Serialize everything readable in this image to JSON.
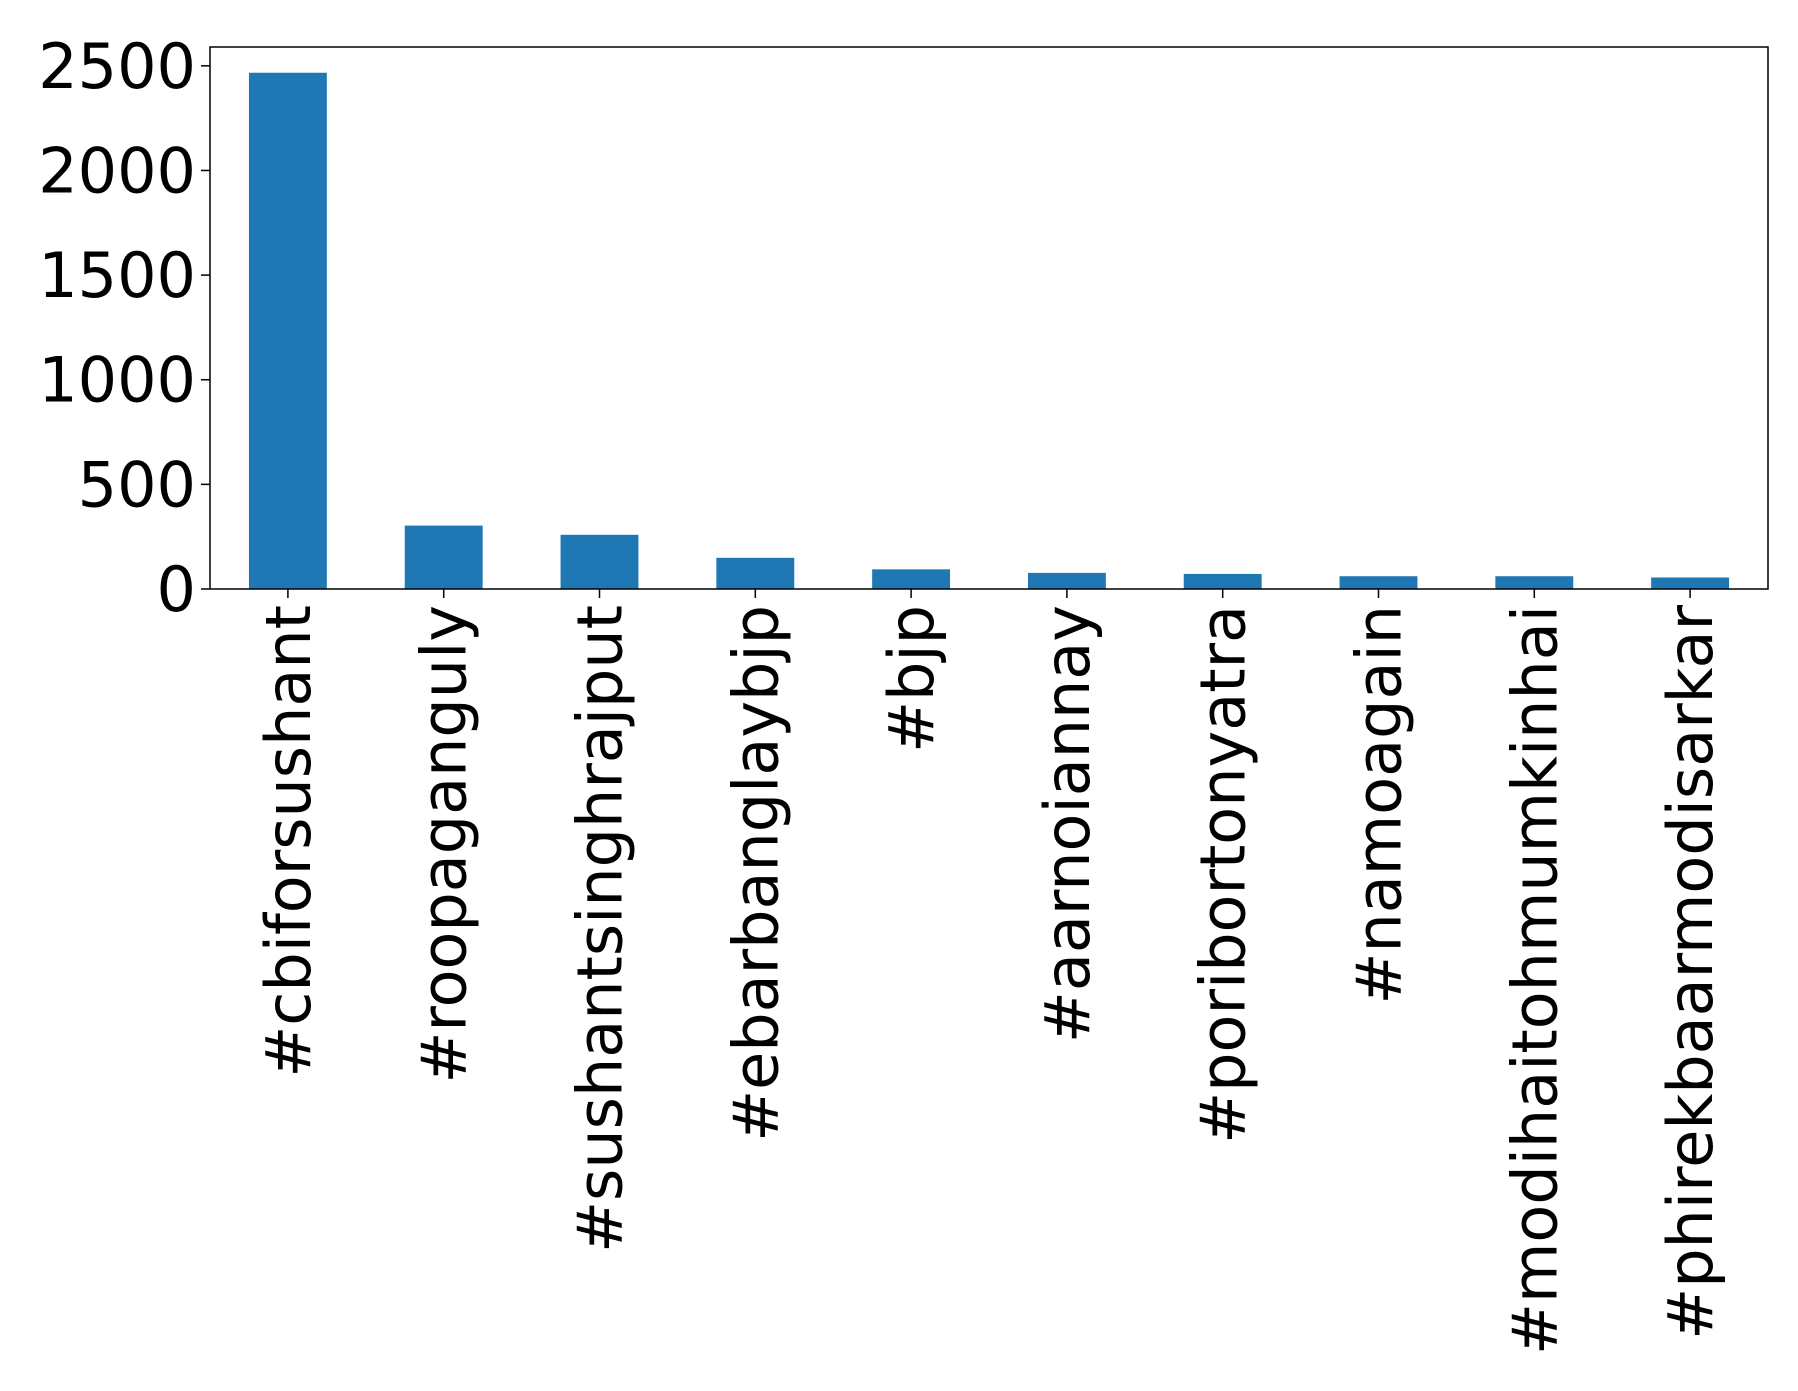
{
  "chart_data": {
    "type": "bar",
    "categories": [
      "#cbiforsushant",
      "#roopaganguly",
      "#sushantsinghrajput",
      "#ebarbanglaybjp",
      "#bjp",
      "#aarnoiannay",
      "#poribortonyatra",
      "#namoagain",
      "#modihaitohmumkinhai",
      "#phirekbaarmodisarkar"
    ],
    "values": [
      2467,
      303,
      259,
      149,
      94,
      77,
      72,
      61,
      61,
      55
    ],
    "color": "#1f77b4",
    "ylim": [
      0,
      2590
    ],
    "yticks": [
      0,
      500,
      1000,
      1500,
      2000,
      2500
    ],
    "grid": false
  }
}
